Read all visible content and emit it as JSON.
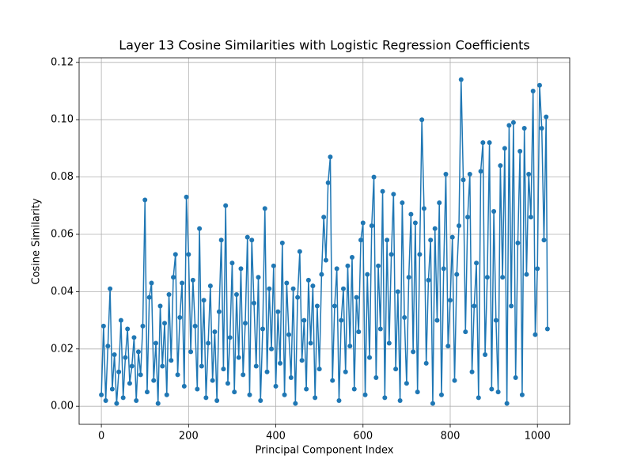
{
  "chart_data": {
    "type": "line",
    "title": "Layer 13 Cosine Similarities with Logistic Regression Coefficients",
    "x_label": "Principal Component Index",
    "y_label": "Cosine Similarity",
    "color": "#1f77b4",
    "markers": true,
    "grid": true,
    "xlim": [
      -51,
      1074
    ],
    "ylim": [
      -0.0063,
      0.1216
    ],
    "xticks": [
      0,
      200,
      400,
      600,
      800,
      1000
    ],
    "yticks": [
      {
        "value": 0,
        "label": "0.00"
      },
      {
        "value": 0.02,
        "label": "0.02"
      },
      {
        "value": 0.04,
        "label": "0.04"
      },
      {
        "value": 0.06,
        "label": "0.06"
      },
      {
        "value": 0.08,
        "label": "0.08"
      },
      {
        "value": 0.1,
        "label": "0.10"
      },
      {
        "value": 0.12,
        "label": "0.12"
      }
    ],
    "x": [
      0,
      5,
      10,
      15,
      20,
      25,
      30,
      35,
      40,
      45,
      50,
      55,
      60,
      65,
      70,
      75,
      80,
      85,
      90,
      95,
      100,
      105,
      110,
      115,
      120,
      125,
      130,
      135,
      140,
      145,
      150,
      155,
      160,
      165,
      170,
      175,
      180,
      185,
      190,
      195,
      200,
      205,
      210,
      215,
      220,
      225,
      230,
      235,
      240,
      245,
      250,
      255,
      260,
      265,
      270,
      275,
      280,
      285,
      290,
      295,
      300,
      305,
      310,
      315,
      320,
      325,
      330,
      335,
      340,
      345,
      350,
      355,
      360,
      365,
      370,
      375,
      380,
      385,
      390,
      395,
      400,
      405,
      410,
      415,
      420,
      425,
      430,
      435,
      440,
      445,
      450,
      455,
      460,
      465,
      470,
      475,
      480,
      485,
      490,
      495,
      500,
      505,
      510,
      515,
      520,
      525,
      530,
      535,
      540,
      545,
      550,
      555,
      560,
      565,
      570,
      575,
      580,
      585,
      590,
      595,
      600,
      605,
      610,
      615,
      620,
      625,
      630,
      635,
      640,
      645,
      650,
      655,
      660,
      665,
      670,
      675,
      680,
      685,
      690,
      695,
      700,
      705,
      710,
      715,
      720,
      725,
      730,
      735,
      740,
      745,
      750,
      755,
      760,
      765,
      770,
      775,
      780,
      785,
      790,
      795,
      800,
      805,
      810,
      815,
      820,
      825,
      830,
      835,
      840,
      845,
      850,
      855,
      860,
      865,
      870,
      875,
      880,
      885,
      890,
      895,
      900,
      905,
      910,
      915,
      920,
      925,
      930,
      935,
      940,
      945,
      950,
      955,
      960,
      965,
      970,
      975,
      980,
      985,
      990,
      995,
      1000,
      1005,
      1010,
      1015,
      1020,
      1023
    ],
    "values": [
      0.004,
      0.028,
      0.002,
      0.021,
      0.041,
      0.006,
      0.018,
      0.001,
      0.012,
      0.03,
      0.003,
      0.017,
      0.027,
      0.008,
      0.014,
      0.024,
      0.002,
      0.019,
      0.011,
      0.028,
      0.072,
      0.005,
      0.038,
      0.043,
      0.009,
      0.022,
      0.001,
      0.035,
      0.014,
      0.029,
      0.004,
      0.039,
      0.016,
      0.045,
      0.053,
      0.011,
      0.031,
      0.043,
      0.007,
      0.073,
      0.053,
      0.019,
      0.044,
      0.028,
      0.006,
      0.062,
      0.014,
      0.037,
      0.003,
      0.022,
      0.042,
      0.009,
      0.026,
      0.002,
      0.033,
      0.058,
      0.013,
      0.07,
      0.008,
      0.024,
      0.05,
      0.005,
      0.039,
      0.017,
      0.048,
      0.011,
      0.029,
      0.059,
      0.004,
      0.058,
      0.036,
      0.014,
      0.045,
      0.002,
      0.027,
      0.069,
      0.012,
      0.041,
      0.02,
      0.049,
      0.007,
      0.033,
      0.015,
      0.057,
      0.004,
      0.043,
      0.025,
      0.01,
      0.041,
      0.001,
      0.038,
      0.054,
      0.016,
      0.03,
      0.006,
      0.044,
      0.022,
      0.042,
      0.003,
      0.035,
      0.013,
      0.046,
      0.066,
      0.051,
      0.078,
      0.087,
      0.009,
      0.035,
      0.048,
      0.002,
      0.03,
      0.041,
      0.012,
      0.049,
      0.021,
      0.052,
      0.006,
      0.038,
      0.026,
      0.058,
      0.064,
      0.004,
      0.046,
      0.017,
      0.063,
      0.08,
      0.01,
      0.049,
      0.027,
      0.075,
      0.003,
      0.058,
      0.022,
      0.053,
      0.074,
      0.013,
      0.04,
      0.002,
      0.071,
      0.031,
      0.008,
      0.045,
      0.067,
      0.019,
      0.064,
      0.005,
      0.053,
      0.1,
      0.069,
      0.015,
      0.044,
      0.058,
      0.001,
      0.062,
      0.03,
      0.071,
      0.004,
      0.048,
      0.081,
      0.021,
      0.037,
      0.059,
      0.009,
      0.046,
      0.063,
      0.114,
      0.079,
      0.026,
      0.066,
      0.081,
      0.012,
      0.035,
      0.05,
      0.003,
      0.082,
      0.092,
      0.018,
      0.045,
      0.092,
      0.006,
      0.068,
      0.03,
      0.005,
      0.084,
      0.045,
      0.09,
      0.001,
      0.098,
      0.035,
      0.099,
      0.01,
      0.057,
      0.089,
      0.004,
      0.097,
      0.046,
      0.081,
      0.066,
      0.11,
      0.025,
      0.048,
      0.112,
      0.097,
      0.058,
      0.101,
      0.027
    ]
  }
}
